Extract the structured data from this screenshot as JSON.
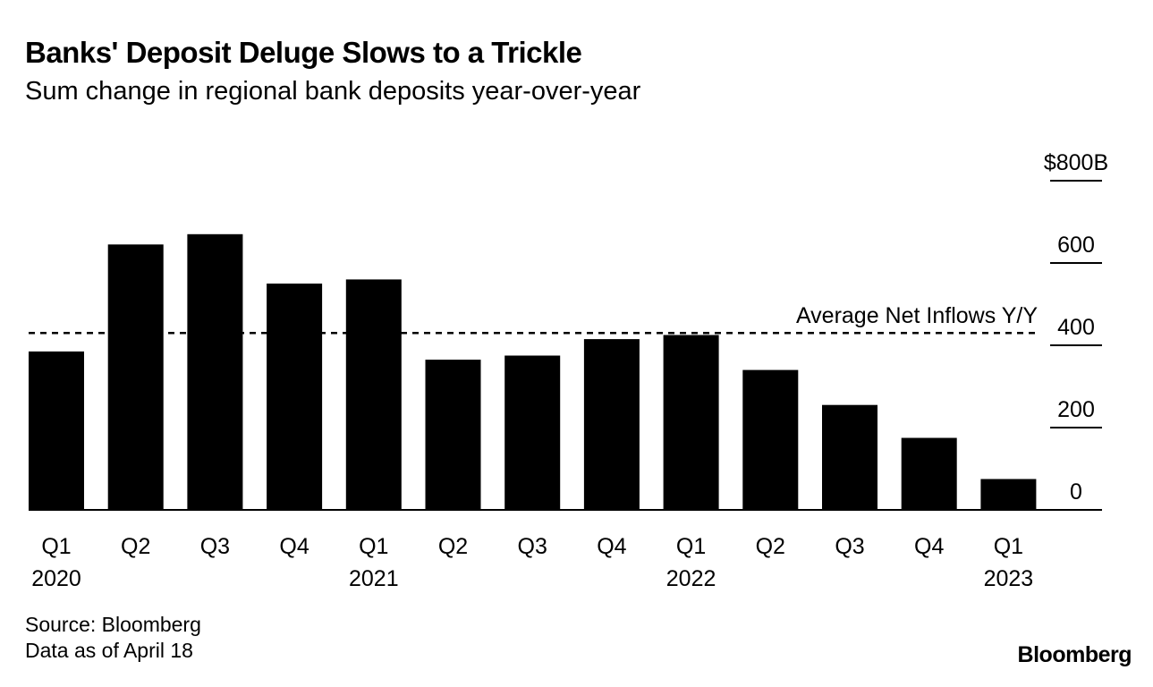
{
  "header": {
    "title": "Banks' Deposit Deluge Slows to a Trickle",
    "subtitle": "Sum change in regional bank deposits year-over-year"
  },
  "chart_data": {
    "type": "bar",
    "title": "Banks' Deposit Deluge Slows to a Trickle",
    "subtitle": "Sum change in regional bank deposits year-over-year",
    "categories": [
      "Q1",
      "Q2",
      "Q3",
      "Q4",
      "Q1",
      "Q2",
      "Q3",
      "Q4",
      "Q1",
      "Q2",
      "Q3",
      "Q4",
      "Q1"
    ],
    "year_labels": [
      "2020",
      "",
      "",
      "",
      "2021",
      "",
      "",
      "",
      "2022",
      "",
      "",
      "",
      "2023"
    ],
    "values": [
      385,
      645,
      670,
      550,
      560,
      365,
      375,
      415,
      425,
      340,
      255,
      175,
      75
    ],
    "ylim": [
      0,
      800
    ],
    "yticks": [
      {
        "value": 0,
        "label": "0"
      },
      {
        "value": 200,
        "label": "200"
      },
      {
        "value": 400,
        "label": "400"
      },
      {
        "value": 600,
        "label": "600"
      },
      {
        "value": 800,
        "label": "$800B"
      }
    ],
    "reference_line": {
      "value": 430,
      "label": "Average Net Inflows Y/Y",
      "style": "dashed"
    },
    "xlabel": "",
    "ylabel": "",
    "y_axis_side": "right",
    "grid": false,
    "bar_color": "#000000"
  },
  "footer": {
    "source": "Source: Bloomberg",
    "note": "Data as of April 18",
    "brand": "Bloomberg"
  }
}
